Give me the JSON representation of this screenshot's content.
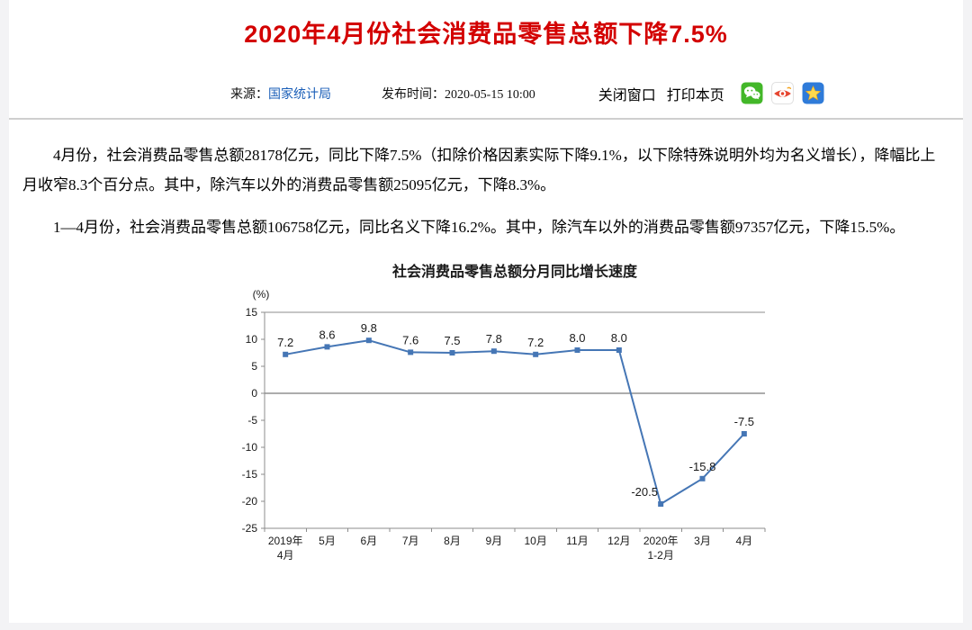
{
  "page": {
    "title": "2020年4月份社会消费品零售总额下降7.5%",
    "title_color": "#d30000",
    "background": "#f3f3f5"
  },
  "meta": {
    "source_label": "来源：",
    "source_link": "国家统计局",
    "publish_label": "发布时间：",
    "publish_time": "2020-05-15 10:00",
    "close_window": "关闭窗口",
    "print_page": "打印本页",
    "link_color": "#1b5fb8",
    "share_icons": [
      {
        "name": "wechat-share-icon",
        "color": "#43b729"
      },
      {
        "name": "weibo-share-icon",
        "color": "#e6452f"
      },
      {
        "name": "favorite-share-icon",
        "color": "#2f7bd9"
      }
    ]
  },
  "article": {
    "paragraphs": [
      "4月份，社会消费品零售总额28178亿元，同比下降7.5%（扣除价格因素实际下降9.1%，以下除特殊说明外均为名义增长），降幅比上月收窄8.3个百分点。其中，除汽车以外的消费品零售额25095亿元，下降8.3%。",
      "1—4月份，社会消费品零售总额106758亿元，同比名义下降16.2%。其中，除汽车以外的消费品零售额97357亿元，下降15.5%。"
    ]
  },
  "chart_data": {
    "type": "line",
    "title": "社会消费品零售总额分月同比增长速度",
    "ylabel": "(%)",
    "categories": [
      "2019年\n4月",
      "5月",
      "6月",
      "7月",
      "8月",
      "9月",
      "10月",
      "11月",
      "12月",
      "2020年\n1-2月",
      "3月",
      "4月"
    ],
    "values": [
      7.2,
      8.6,
      9.8,
      7.6,
      7.5,
      7.8,
      7.2,
      8.0,
      8.0,
      -20.5,
      -15.8,
      -7.5
    ],
    "ylim": [
      -25,
      15
    ],
    "ytick_step": 5,
    "grid": false,
    "legend_position": "none",
    "line_color": "#4576b5",
    "axis_color": "#8c8c8c",
    "zero_line_color": "#595959",
    "marker": "square"
  }
}
